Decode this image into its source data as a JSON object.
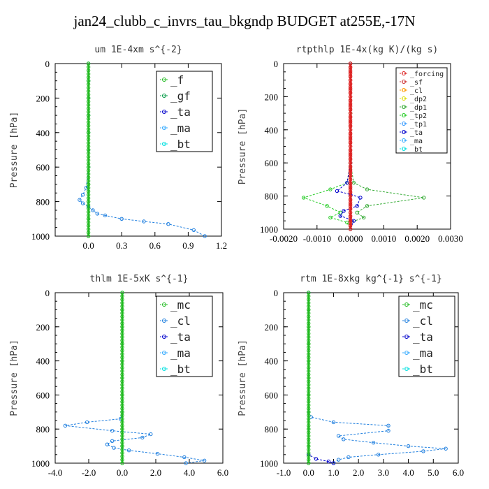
{
  "title": "jan24_clubb_c_invrs_tau_bkgndp  BUDGET at255E,-17N",
  "chart_data": [
    {
      "id": "um",
      "type": "line",
      "title": "um   1E-4xm s^{-2}",
      "ylabel": "Pressure [hPa]",
      "xlim": [
        -0.3,
        1.2
      ],
      "ylim": [
        1000,
        0
      ],
      "xticks": [
        0.0,
        0.3,
        0.6,
        0.9,
        1.2
      ],
      "xtick_labels": [
        "0.0",
        "0.3",
        "0.6",
        "0.9",
        "1.2"
      ],
      "yticks": [
        0,
        200,
        400,
        600,
        800,
        1000
      ],
      "ytick_labels": [
        "0",
        "200",
        "400",
        "600",
        "800",
        "1000"
      ],
      "legend_font": 16,
      "legend": [
        {
          "name": "_f",
          "color": "#22bb22"
        },
        {
          "name": "_gf",
          "color": "#009944"
        },
        {
          "name": "_ta",
          "color": "#0000cc"
        },
        {
          "name": "_ma",
          "color": "#33aaff"
        },
        {
          "name": "_bt",
          "color": "#00e0e0"
        }
      ],
      "series": [
        {
          "name": "_bt",
          "color": "#1f7fdf",
          "x": [
            0,
            0,
            0,
            0,
            0,
            0,
            0,
            -0.02,
            -0.05,
            -0.08,
            -0.05,
            0,
            0.04,
            0.08,
            0.15,
            0.3,
            0.5,
            0.72,
            0.95,
            1.05
          ],
          "y": [
            0,
            100,
            200,
            300,
            400,
            500,
            600,
            720,
            760,
            790,
            810,
            830,
            850,
            870,
            880,
            900,
            915,
            930,
            965,
            1000
          ]
        },
        {
          "name": "_f",
          "color": "#22bb22",
          "x": [
            0,
            0,
            0,
            0,
            0,
            0,
            0,
            0,
            0,
            0,
            0
          ],
          "y": [
            0,
            100,
            200,
            300,
            400,
            500,
            600,
            700,
            800,
            900,
            1000
          ]
        }
      ]
    },
    {
      "id": "rtpthlp",
      "type": "line",
      "title": "rtpthlp   1E-4x(kg K)/(kg s)",
      "ylabel": "Pressure [hPa]",
      "xlim": [
        -0.002,
        0.003
      ],
      "ylim": [
        1000,
        0
      ],
      "xticks": [
        -0.002,
        -0.001,
        0,
        0.001,
        0.002,
        0.003
      ],
      "xtick_labels": [
        "-0.0020",
        "-0.0010",
        "0.0000",
        "0.0010",
        "0.0020",
        "0.0030"
      ],
      "yticks": [
        0,
        200,
        400,
        600,
        800,
        1000
      ],
      "ytick_labels": [
        "0",
        "200",
        "400",
        "600",
        "800",
        "1000"
      ],
      "legend_font": 10,
      "legend": [
        {
          "name": "_forcing",
          "color": "#dd2222"
        },
        {
          "name": "_sf",
          "color": "#cc3333"
        },
        {
          "name": "_cl",
          "color": "#ff9900"
        },
        {
          "name": "_dp2",
          "color": "#dddd00"
        },
        {
          "name": "_dp1",
          "color": "#33aa33"
        },
        {
          "name": "_tp2",
          "color": "#22cc22"
        },
        {
          "name": "_tp1",
          "color": "#3399ff"
        },
        {
          "name": "_ta",
          "color": "#0000cc"
        },
        {
          "name": "_ma",
          "color": "#33aaff"
        },
        {
          "name": "_bt",
          "color": "#00e0e0"
        }
      ],
      "series": [
        {
          "name": "_dp1",
          "color": "#33aa33",
          "x": [
            0,
            0,
            0,
            0.0001,
            0.0005,
            0.0022,
            0.0005,
            0.0002,
            0.0004,
            0,
            0
          ],
          "y": [
            0,
            300,
            600,
            720,
            760,
            810,
            860,
            900,
            930,
            960,
            1000
          ]
        },
        {
          "name": "_tp2",
          "color": "#22cc22",
          "x": [
            0,
            0,
            0,
            -0.0001,
            -0.0006,
            -0.0014,
            -0.0007,
            -0.0003,
            -0.0006,
            -0.0001,
            0
          ],
          "y": [
            0,
            300,
            600,
            720,
            760,
            810,
            860,
            900,
            930,
            960,
            1000
          ]
        },
        {
          "name": "_ta",
          "color": "#0000cc",
          "x": [
            0,
            0,
            -0.0001,
            -0.0004,
            0,
            0.0003,
            0.0002,
            -0.0002,
            -0.0003,
            0.0001,
            0
          ],
          "y": [
            0,
            600,
            720,
            770,
            790,
            810,
            860,
            890,
            920,
            950,
            1000
          ]
        },
        {
          "name": "_forcing",
          "color": "#dd2222",
          "x": [
            0,
            0,
            0,
            0,
            0,
            0,
            0,
            0,
            0,
            0,
            0,
            0,
            0,
            0,
            0,
            0,
            0,
            0,
            0,
            0,
            0,
            0,
            0,
            0,
            0,
            0,
            0,
            0,
            0,
            0,
            0,
            0,
            0,
            0,
            0,
            0,
            0,
            0,
            0,
            0,
            0
          ],
          "y": [
            0,
            25,
            50,
            75,
            100,
            125,
            150,
            175,
            200,
            225,
            250,
            275,
            300,
            325,
            350,
            375,
            400,
            425,
            450,
            475,
            500,
            525,
            550,
            575,
            600,
            625,
            650,
            675,
            700,
            725,
            750,
            775,
            800,
            825,
            850,
            875,
            900,
            925,
            950,
            975,
            1000
          ]
        }
      ]
    },
    {
      "id": "thlm",
      "type": "line",
      "title": "thlm   1E-5xK s^{-1}",
      "ylabel": "Pressure [hPa]",
      "xlim": [
        -4,
        6
      ],
      "ylim": [
        1000,
        0
      ],
      "xticks": [
        -4,
        -2,
        0,
        2,
        4,
        6
      ],
      "xtick_labels": [
        "-4.0",
        "-2.0",
        "0.0",
        "2.0",
        "4.0",
        "6.0"
      ],
      "yticks": [
        0,
        200,
        400,
        600,
        800,
        1000
      ],
      "ytick_labels": [
        "0",
        "200",
        "400",
        "600",
        "800",
        "1000"
      ],
      "legend_font": 16,
      "legend": [
        {
          "name": "_mc",
          "color": "#22bb22"
        },
        {
          "name": "_cl",
          "color": "#1f7fdf"
        },
        {
          "name": "_ta",
          "color": "#0000cc"
        },
        {
          "name": "_ma",
          "color": "#33aaff"
        },
        {
          "name": "_bt",
          "color": "#00e0e0"
        }
      ],
      "series": [
        {
          "name": "_cl",
          "color": "#1f7fdf",
          "x": [
            0,
            0,
            -0.1,
            -2.1,
            -3.4,
            -0.6,
            1.7,
            1.2,
            -0.6,
            -0.9,
            -0.5,
            0.4,
            2.1,
            3.7,
            4.9,
            3.8
          ],
          "y": [
            0,
            700,
            740,
            760,
            780,
            810,
            830,
            850,
            870,
            890,
            910,
            925,
            945,
            965,
            985,
            1000
          ]
        },
        {
          "name": "_mc",
          "color": "#22bb22",
          "x": [
            0,
            0,
            0,
            0,
            0,
            0,
            0,
            0,
            0,
            0,
            0
          ],
          "y": [
            0,
            100,
            200,
            300,
            400,
            500,
            600,
            700,
            800,
            900,
            1000
          ]
        }
      ]
    },
    {
      "id": "rtm",
      "type": "line",
      "title": "rtm   1E-8xkg kg^{-1} s^{-1}",
      "ylabel": "Pressure [hPa]",
      "xlim": [
        -1,
        6
      ],
      "ylim": [
        1000,
        0
      ],
      "xticks": [
        -1,
        0,
        1,
        2,
        3,
        4,
        5,
        6
      ],
      "xtick_labels": [
        "-1.0",
        "0.0",
        "1.0",
        "2.0",
        "3.0",
        "4.0",
        "5.0",
        "6.0"
      ],
      "yticks": [
        0,
        200,
        400,
        600,
        800,
        1000
      ],
      "ytick_labels": [
        "0",
        "200",
        "400",
        "600",
        "800",
        "1000"
      ],
      "legend_font": 16,
      "legend": [
        {
          "name": "_mc",
          "color": "#22bb22"
        },
        {
          "name": "_cl",
          "color": "#1f7fdf"
        },
        {
          "name": "_ta",
          "color": "#0000cc"
        },
        {
          "name": "_ma",
          "color": "#33aaff"
        },
        {
          "name": "_bt",
          "color": "#00e0e0"
        }
      ],
      "series": [
        {
          "name": "_cl",
          "color": "#1f7fdf",
          "x": [
            0,
            0,
            0.1,
            1.0,
            3.2,
            3.2,
            1.2,
            1.4,
            2.6,
            4.0,
            5.5,
            4.6,
            2.8,
            1.6,
            1.2,
            1.0
          ],
          "y": [
            0,
            700,
            730,
            760,
            780,
            810,
            840,
            860,
            880,
            900,
            915,
            930,
            950,
            965,
            980,
            1000
          ]
        },
        {
          "name": "_ta",
          "color": "#0000cc",
          "x": [
            0,
            0,
            0.3,
            0.8,
            1.0
          ],
          "y": [
            0,
            950,
            975,
            990,
            1000
          ]
        },
        {
          "name": "_mc",
          "color": "#22bb22",
          "x": [
            0,
            0,
            0,
            0,
            0,
            0,
            0,
            0,
            0,
            0,
            0
          ],
          "y": [
            0,
            100,
            200,
            300,
            400,
            500,
            600,
            700,
            800,
            900,
            1000
          ]
        }
      ]
    }
  ]
}
